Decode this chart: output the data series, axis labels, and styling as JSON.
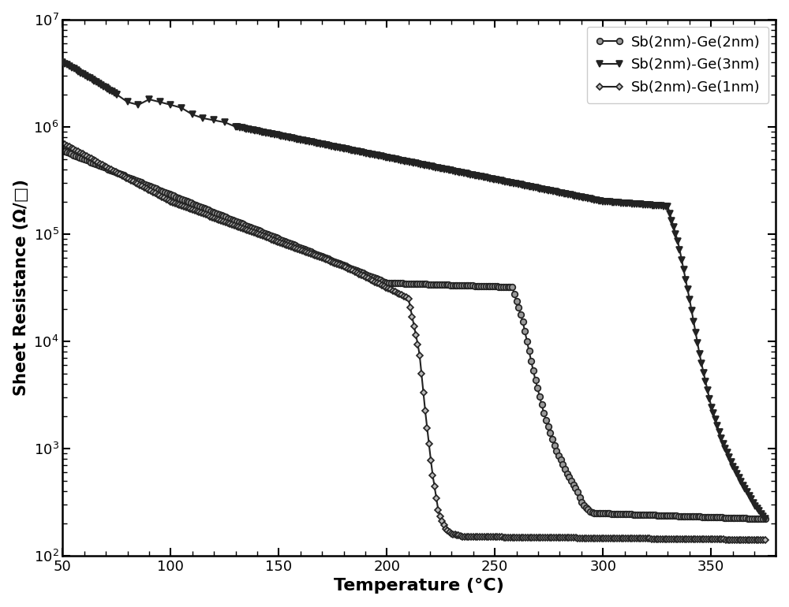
{
  "title": "",
  "xlabel": "Temperature (°C)",
  "ylabel": "Sheet Resistance (Ω/□)",
  "xlim": [
    50,
    380
  ],
  "ylim_log": [
    2,
    7
  ],
  "background_color": "#ffffff",
  "legend_labels": [
    "Sb(2nm)-Ge(2nm)",
    "Sb(2nm)-Ge(3nm)",
    "Sb(2nm)-Ge(1nm)"
  ]
}
